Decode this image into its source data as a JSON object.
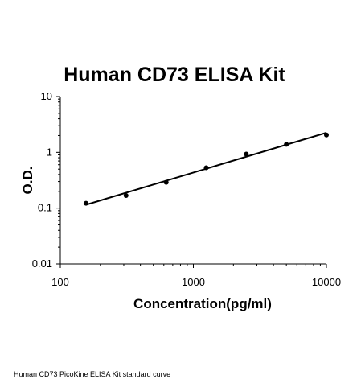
{
  "chart_data": {
    "type": "scatter",
    "title": "Human CD73 ELISA Kit",
    "xlabel": "Concentration(pg/ml)",
    "ylabel": "O.D.",
    "x_scale": "log",
    "y_scale": "log",
    "xlim": [
      100,
      10000
    ],
    "ylim": [
      0.01,
      10
    ],
    "x_ticks": [
      100,
      1000,
      10000
    ],
    "x_tick_labels": [
      "100",
      "1000",
      "10000"
    ],
    "y_ticks": [
      0.01,
      0.1,
      1,
      10
    ],
    "y_tick_labels": [
      "0.01",
      "0.1",
      "1",
      "10"
    ],
    "grid": false,
    "series": [
      {
        "x": [
          156,
          312,
          625,
          1250,
          2500,
          5000,
          10000
        ],
        "y": [
          0.122,
          0.168,
          0.29,
          0.53,
          0.93,
          1.39,
          2.05
        ]
      }
    ],
    "trendline": {
      "x": [
        156,
        10000
      ],
      "y": [
        0.115,
        2.25
      ]
    },
    "colors": {
      "marker": "#000000",
      "line": "#000000",
      "axis": "#000000"
    }
  },
  "caption": "Human CD73 PicoKine ELISA Kit standard curve"
}
